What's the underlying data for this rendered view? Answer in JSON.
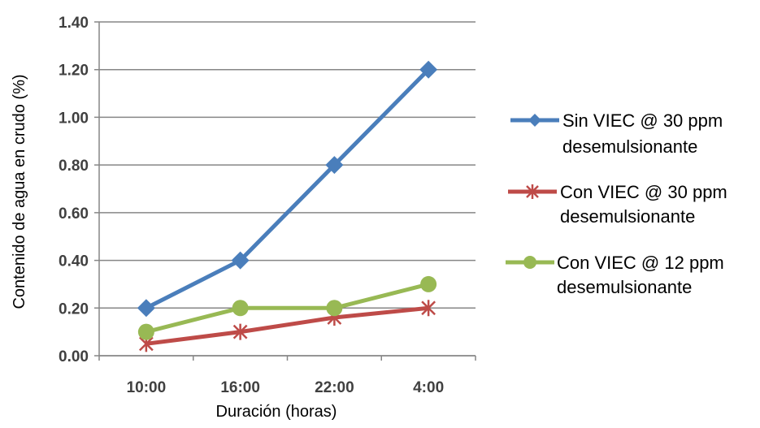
{
  "chart_data": {
    "type": "line",
    "title": "",
    "xlabel": "Duración (horas)",
    "ylabel": "Contenido de agua en crudo (%)",
    "categories": [
      "10:00",
      "16:00",
      "22:00",
      "4:00"
    ],
    "ylim": [
      0,
      1.4
    ],
    "yticks": [
      "0.00",
      "0.20",
      "0.40",
      "0.60",
      "0.80",
      "1.00",
      "1.20",
      "1.40"
    ],
    "grid": true,
    "legend_position": "right",
    "series": [
      {
        "name_line1": "Sin VIEC @ 30 ppm",
        "name_line2": "desemulsionante",
        "values": [
          0.2,
          0.4,
          0.8,
          1.2
        ],
        "color": "#4a7ebb",
        "marker": "diamond"
      },
      {
        "name_line1": "Con VIEC @ 30 ppm",
        "name_line2": "desemulsionante",
        "values": [
          0.05,
          0.1,
          0.16,
          0.2
        ],
        "color": "#be4b48",
        "marker": "star"
      },
      {
        "name_line1": "Con VIEC @ 12 ppm",
        "name_line2": "desemulsionante",
        "values": [
          0.1,
          0.2,
          0.2,
          0.3
        ],
        "color": "#98b954",
        "marker": "circle"
      }
    ]
  }
}
